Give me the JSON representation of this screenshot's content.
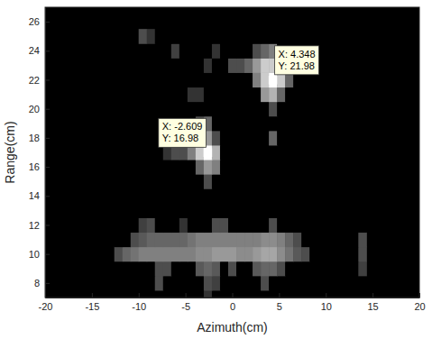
{
  "chart_data": {
    "type": "heatmap",
    "x_label": "Azimuth(cm)",
    "y_label": "Range(cm)",
    "xlim": [
      -20,
      20
    ],
    "ylim": [
      7,
      27
    ],
    "xticks": [
      -20,
      -15,
      -10,
      -5,
      0,
      5,
      10,
      15,
      20
    ],
    "yticks": [
      8,
      10,
      12,
      14,
      16,
      18,
      20,
      22,
      24,
      26
    ],
    "zlim": [
      0,
      1
    ],
    "x": [
      -12.17,
      -11.3,
      -10.43,
      -9.57,
      -8.7,
      -7.83,
      -6.96,
      -6.09,
      -5.22,
      -4.35,
      -3.48,
      -2.61,
      -1.74,
      -0.87,
      0,
      0.87,
      1.74,
      2.61,
      3.48,
      4.35,
      5.22,
      6.09,
      6.96,
      7.83,
      8.7,
      9.57,
      10.43,
      11.3,
      12.17,
      13.04,
      13.91
    ],
    "y": [
      7,
      8,
      9,
      10,
      11,
      12,
      13,
      14,
      15,
      16,
      17,
      18,
      19,
      20,
      21,
      22,
      23,
      24,
      25
    ],
    "z": [
      [
        0,
        0,
        0,
        0,
        0,
        0,
        0,
        0,
        0,
        0,
        0,
        0.2,
        0,
        0,
        0,
        0,
        0,
        0,
        0,
        0,
        0,
        0,
        0,
        0,
        0,
        0,
        0,
        0,
        0,
        0,
        0
      ],
      [
        0,
        0,
        0,
        0,
        0,
        0.3,
        0,
        0,
        0,
        0,
        0,
        0.3,
        0.25,
        0,
        0,
        0,
        0,
        0,
        0.3,
        0,
        0,
        0,
        0,
        0,
        0,
        0,
        0,
        0,
        0,
        0,
        0
      ],
      [
        0,
        0,
        0,
        0,
        0,
        0.3,
        0.3,
        0,
        0,
        0,
        0.35,
        0.4,
        0.35,
        0,
        0.3,
        0,
        0,
        0.35,
        0.4,
        0.4,
        0.3,
        0,
        0,
        0,
        0,
        0,
        0,
        0,
        0,
        0,
        0.25
      ],
      [
        0.3,
        0.4,
        0.45,
        0.5,
        0.5,
        0.5,
        0.5,
        0.5,
        0.5,
        0.5,
        0.55,
        0.55,
        0.6,
        0.6,
        0.6,
        0.55,
        0.55,
        0.6,
        0.65,
        0.65,
        0.55,
        0.45,
        0.35,
        0.3,
        0,
        0,
        0,
        0,
        0,
        0,
        0.3
      ],
      [
        0,
        0,
        0.3,
        0.35,
        0.4,
        0.4,
        0.4,
        0.4,
        0.4,
        0.45,
        0.5,
        0.5,
        0.5,
        0.5,
        0.5,
        0.5,
        0.5,
        0.5,
        0.55,
        0.55,
        0.5,
        0.4,
        0.3,
        0,
        0,
        0,
        0,
        0,
        0,
        0,
        0.3
      ],
      [
        0,
        0,
        0,
        0.25,
        0.3,
        0,
        0,
        0,
        0.2,
        0,
        0,
        0,
        0.3,
        0.3,
        0,
        0,
        0,
        0,
        0,
        0.3,
        0,
        0,
        0,
        0,
        0,
        0,
        0,
        0,
        0,
        0,
        0
      ],
      [
        0,
        0,
        0,
        0,
        0,
        0,
        0,
        0,
        0,
        0,
        0,
        0,
        0,
        0,
        0,
        0,
        0,
        0,
        0,
        0,
        0,
        0,
        0,
        0,
        0,
        0,
        0,
        0,
        0,
        0,
        0
      ],
      [
        0,
        0,
        0,
        0,
        0,
        0,
        0,
        0,
        0,
        0,
        0,
        0,
        0,
        0,
        0,
        0,
        0,
        0,
        0,
        0,
        0,
        0,
        0,
        0,
        0,
        0,
        0,
        0,
        0,
        0,
        0
      ],
      [
        0,
        0,
        0,
        0,
        0,
        0,
        0,
        0,
        0,
        0,
        0,
        0.3,
        0,
        0,
        0,
        0,
        0,
        0,
        0,
        0,
        0,
        0,
        0,
        0,
        0,
        0,
        0,
        0,
        0,
        0,
        0
      ],
      [
        0,
        0,
        0,
        0,
        0,
        0,
        0,
        0,
        0,
        0,
        0.4,
        0.6,
        0.5,
        0,
        0,
        0,
        0,
        0,
        0,
        0,
        0,
        0,
        0,
        0,
        0,
        0,
        0,
        0,
        0,
        0,
        0
      ],
      [
        0,
        0,
        0,
        0,
        0,
        0,
        0.2,
        0.3,
        0.3,
        0.5,
        0.8,
        1,
        0.7,
        0,
        0,
        0,
        0,
        0,
        0,
        0,
        0,
        0,
        0,
        0,
        0,
        0,
        0,
        0,
        0,
        0,
        0
      ],
      [
        0,
        0,
        0,
        0,
        0,
        0,
        0,
        0,
        0,
        0,
        0.5,
        0.6,
        0.3,
        0,
        0,
        0,
        0,
        0,
        0,
        0.4,
        0,
        0,
        0,
        0,
        0,
        0,
        0,
        0,
        0,
        0,
        0
      ],
      [
        0,
        0,
        0,
        0,
        0,
        0,
        0,
        0,
        0,
        0,
        0.3,
        0.4,
        0,
        0,
        0,
        0,
        0,
        0,
        0,
        0,
        0,
        0,
        0,
        0,
        0,
        0,
        0,
        0,
        0,
        0,
        0
      ],
      [
        0,
        0,
        0,
        0,
        0,
        0,
        0,
        0,
        0,
        0,
        0,
        0,
        0,
        0,
        0,
        0,
        0,
        0,
        0,
        0.3,
        0,
        0,
        0,
        0,
        0,
        0,
        0,
        0,
        0,
        0,
        0
      ],
      [
        0,
        0,
        0,
        0,
        0,
        0,
        0,
        0,
        0,
        0.2,
        0.2,
        0,
        0,
        0,
        0,
        0,
        0,
        0,
        0.6,
        0.7,
        0.4,
        0,
        0,
        0,
        0,
        0,
        0,
        0,
        0,
        0,
        0
      ],
      [
        0,
        0,
        0,
        0,
        0,
        0,
        0,
        0,
        0,
        0,
        0,
        0,
        0,
        0,
        0,
        0,
        0,
        0.5,
        0.8,
        1,
        0.8,
        0.4,
        0,
        0,
        0,
        0,
        0,
        0,
        0,
        0,
        0
      ],
      [
        0,
        0,
        0,
        0,
        0,
        0,
        0,
        0,
        0,
        0,
        0,
        0.2,
        0,
        0,
        0.3,
        0.3,
        0.4,
        0.6,
        0.8,
        0.8,
        0.5,
        0,
        0,
        0,
        0,
        0,
        0,
        0,
        0,
        0,
        0
      ],
      [
        0,
        0,
        0,
        0,
        0,
        0,
        0,
        0.25,
        0,
        0,
        0,
        0,
        0.2,
        0,
        0,
        0,
        0,
        0.3,
        0.4,
        0.5,
        0,
        0,
        0,
        0,
        0,
        0,
        0,
        0,
        0,
        0,
        0
      ],
      [
        0,
        0,
        0,
        0.3,
        0.2,
        0,
        0,
        0,
        0,
        0,
        0,
        0,
        0,
        0,
        0,
        0,
        0,
        0,
        0,
        0,
        0,
        0,
        0,
        0,
        0,
        0,
        0,
        0,
        0,
        0,
        0
      ]
    ],
    "annotations": [
      {
        "x": -2.609,
        "y": 16.98,
        "text": [
          "X: -2.609",
          "Y: 16.98"
        ]
      },
      {
        "x": 4.348,
        "y": 21.98,
        "text": [
          "X: 4.348",
          "Y: 21.98"
        ]
      }
    ]
  }
}
